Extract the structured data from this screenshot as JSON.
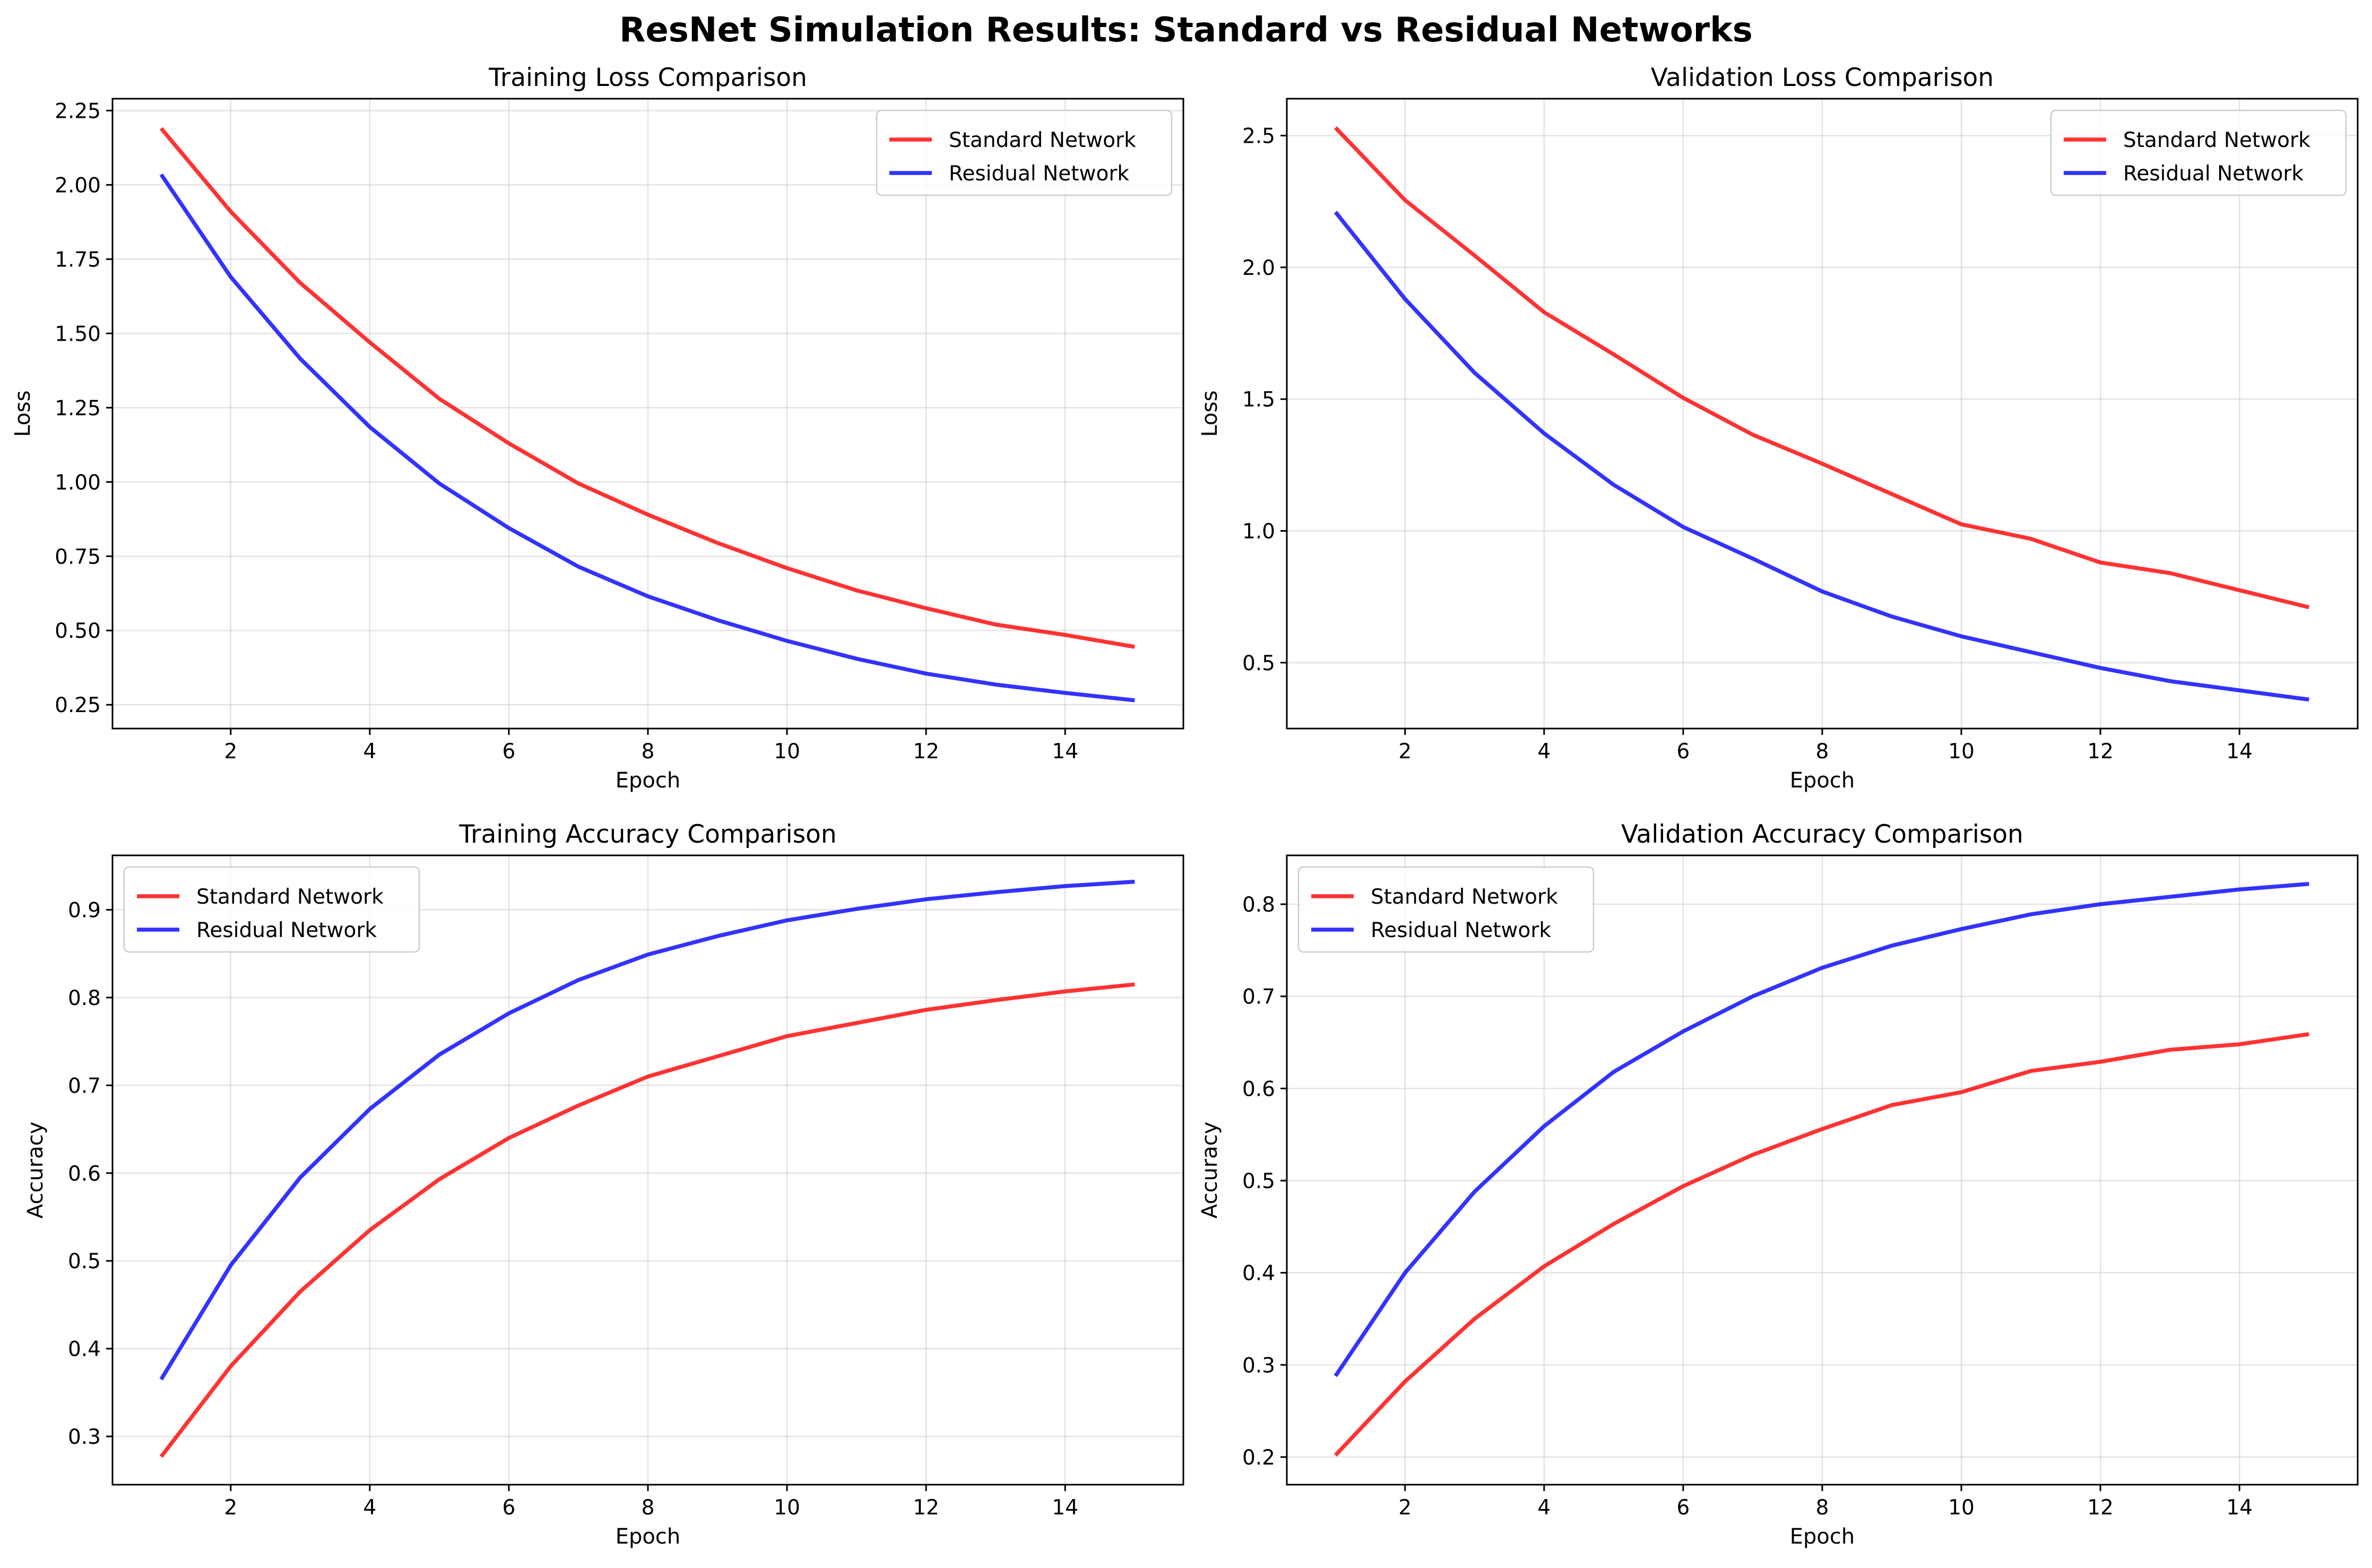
{
  "suptitle": "ResNet Simulation Results: Standard vs Residual Networks",
  "colors": {
    "standard": "#ff0000",
    "residual": "#0000ff"
  },
  "chart_data": [
    {
      "type": "line",
      "title": "Training Loss Comparison",
      "xlabel": "Epoch",
      "ylabel": "Loss",
      "x": [
        1,
        2,
        3,
        4,
        5,
        6,
        7,
        8,
        9,
        10,
        11,
        12,
        13,
        14,
        15
      ],
      "xlim": [
        0.3,
        15.7
      ],
      "xticks": [
        2,
        4,
        6,
        8,
        10,
        12,
        14
      ],
      "ylim": [
        0.17,
        2.29
      ],
      "yticks": [
        0.25,
        0.5,
        0.75,
        1.0,
        1.25,
        1.5,
        1.75,
        2.0,
        2.25
      ],
      "ytick_labels": [
        "0.25",
        "0.50",
        "0.75",
        "1.00",
        "1.25",
        "1.50",
        "1.75",
        "2.00",
        "2.25"
      ],
      "grid": true,
      "legend": "upper right",
      "series": [
        {
          "name": "Standard Network",
          "color": "#ff0000",
          "values": [
            2.19,
            1.91,
            1.67,
            1.47,
            1.28,
            1.13,
            0.995,
            0.89,
            0.795,
            0.71,
            0.635,
            0.575,
            0.52,
            0.485,
            0.445
          ]
        },
        {
          "name": "Residual Network",
          "color": "#0000ff",
          "values": [
            2.035,
            1.69,
            1.415,
            1.185,
            0.995,
            0.845,
            0.715,
            0.615,
            0.535,
            0.465,
            0.405,
            0.355,
            0.318,
            0.29,
            0.265
          ]
        }
      ]
    },
    {
      "type": "line",
      "title": "Validation Loss Comparison",
      "xlabel": "Epoch",
      "ylabel": "Loss",
      "x": [
        1,
        2,
        3,
        4,
        5,
        6,
        7,
        8,
        9,
        10,
        11,
        12,
        13,
        14,
        15
      ],
      "xlim": [
        0.3,
        15.7
      ],
      "xticks": [
        2,
        4,
        6,
        8,
        10,
        12,
        14
      ],
      "ylim": [
        0.25,
        2.64
      ],
      "yticks": [
        0.5,
        1.0,
        1.5,
        2.0,
        2.5
      ],
      "ytick_labels": [
        "0.5",
        "1.0",
        "1.5",
        "2.0",
        "2.5"
      ],
      "grid": true,
      "legend": "upper right",
      "series": [
        {
          "name": "Standard Network",
          "color": "#ff0000",
          "values": [
            2.53,
            2.255,
            2.045,
            1.83,
            1.67,
            1.505,
            1.365,
            1.255,
            1.14,
            1.025,
            0.97,
            0.88,
            0.84,
            0.775,
            0.71
          ]
        },
        {
          "name": "Residual Network",
          "color": "#0000ff",
          "values": [
            2.21,
            1.88,
            1.6,
            1.37,
            1.175,
            1.015,
            0.895,
            0.77,
            0.675,
            0.6,
            0.54,
            0.48,
            0.43,
            0.395,
            0.36
          ]
        }
      ]
    },
    {
      "type": "line",
      "title": "Training Accuracy Comparison",
      "xlabel": "Epoch",
      "ylabel": "Accuracy",
      "x": [
        1,
        2,
        3,
        4,
        5,
        6,
        7,
        8,
        9,
        10,
        11,
        12,
        13,
        14,
        15
      ],
      "xlim": [
        0.3,
        15.7
      ],
      "xticks": [
        2,
        4,
        6,
        8,
        10,
        12,
        14
      ],
      "ylim": [
        0.245,
        0.962
      ],
      "yticks": [
        0.3,
        0.4,
        0.5,
        0.6,
        0.7,
        0.8,
        0.9
      ],
      "ytick_labels": [
        "0.3",
        "0.4",
        "0.5",
        "0.6",
        "0.7",
        "0.8",
        "0.9"
      ],
      "grid": true,
      "legend": "upper left",
      "series": [
        {
          "name": "Standard Network",
          "color": "#ff0000",
          "values": [
            0.277,
            0.38,
            0.465,
            0.535,
            0.593,
            0.64,
            0.677,
            0.71,
            0.733,
            0.756,
            0.771,
            0.786,
            0.797,
            0.807,
            0.815
          ]
        },
        {
          "name": "Residual Network",
          "color": "#0000ff",
          "values": [
            0.365,
            0.495,
            0.595,
            0.673,
            0.735,
            0.782,
            0.82,
            0.849,
            0.87,
            0.888,
            0.901,
            0.912,
            0.92,
            0.927,
            0.932
          ]
        }
      ]
    },
    {
      "type": "line",
      "title": "Validation Accuracy Comparison",
      "xlabel": "Epoch",
      "ylabel": "Accuracy",
      "x": [
        1,
        2,
        3,
        4,
        5,
        6,
        7,
        8,
        9,
        10,
        11,
        12,
        13,
        14,
        15
      ],
      "xlim": [
        0.3,
        15.7
      ],
      "xticks": [
        2,
        4,
        6,
        8,
        10,
        12,
        14
      ],
      "ylim": [
        0.17,
        0.853
      ],
      "yticks": [
        0.2,
        0.3,
        0.4,
        0.5,
        0.6,
        0.7,
        0.8
      ],
      "ytick_labels": [
        "0.2",
        "0.3",
        "0.4",
        "0.5",
        "0.6",
        "0.7",
        "0.8"
      ],
      "grid": true,
      "legend": "upper left",
      "series": [
        {
          "name": "Standard Network",
          "color": "#ff0000",
          "values": [
            0.202,
            0.282,
            0.35,
            0.407,
            0.453,
            0.494,
            0.528,
            0.556,
            0.582,
            0.596,
            0.619,
            0.629,
            0.642,
            0.648,
            0.659
          ]
        },
        {
          "name": "Residual Network",
          "color": "#0000ff",
          "values": [
            0.288,
            0.4,
            0.488,
            0.559,
            0.618,
            0.662,
            0.7,
            0.731,
            0.755,
            0.773,
            0.789,
            0.8,
            0.808,
            0.816,
            0.822
          ]
        }
      ]
    }
  ]
}
